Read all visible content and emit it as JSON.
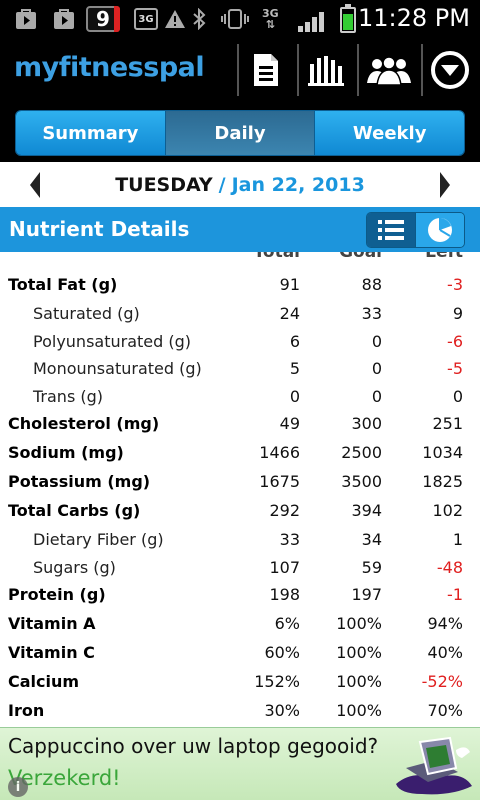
{
  "status_bar": {
    "notification_count": "9",
    "network_type": "3G",
    "time": "11:28 PM"
  },
  "app": {
    "logo": "myfitnesspal",
    "header_icons": [
      "document-icon",
      "bar-chart-icon",
      "friends-icon",
      "menu-dropdown-icon"
    ]
  },
  "tabs": [
    {
      "label": "Summary",
      "active": false
    },
    {
      "label": "Daily",
      "active": true
    },
    {
      "label": "Weekly",
      "active": false
    }
  ],
  "date_nav": {
    "day": "TUESDAY",
    "separator": "/",
    "date": "Jan 22, 2013"
  },
  "section": {
    "title": "Nutrient Details"
  },
  "columns": [
    "Total",
    "Goal",
    "Left"
  ],
  "nutrients": [
    {
      "name": "Total Fat (g)",
      "total": "91",
      "goal": "88",
      "left": "-3",
      "level": "main"
    },
    {
      "name": "Saturated (g)",
      "total": "24",
      "goal": "33",
      "left": "9",
      "level": "sub"
    },
    {
      "name": "Polyunsaturated (g)",
      "total": "6",
      "goal": "0",
      "left": "-6",
      "level": "sub"
    },
    {
      "name": "Monounsaturated (g)",
      "total": "5",
      "goal": "0",
      "left": "-5",
      "level": "sub"
    },
    {
      "name": "Trans (g)",
      "total": "0",
      "goal": "0",
      "left": "0",
      "level": "sub"
    },
    {
      "name": "Cholesterol (mg)",
      "total": "49",
      "goal": "300",
      "left": "251",
      "level": "main"
    },
    {
      "name": "Sodium (mg)",
      "total": "1466",
      "goal": "2500",
      "left": "1034",
      "level": "main"
    },
    {
      "name": "Potassium (mg)",
      "total": "1675",
      "goal": "3500",
      "left": "1825",
      "level": "main"
    },
    {
      "name": "Total Carbs (g)",
      "total": "292",
      "goal": "394",
      "left": "102",
      "level": "main"
    },
    {
      "name": "Dietary Fiber (g)",
      "total": "33",
      "goal": "34",
      "left": "1",
      "level": "sub"
    },
    {
      "name": "Sugars (g)",
      "total": "107",
      "goal": "59",
      "left": "-48",
      "level": "sub"
    },
    {
      "name": "Protein (g)",
      "total": "198",
      "goal": "197",
      "left": "-1",
      "level": "main"
    },
    {
      "name": "Vitamin A",
      "total": "6%",
      "goal": "100%",
      "left": "94%",
      "level": "main"
    },
    {
      "name": "Vitamin C",
      "total": "60%",
      "goal": "100%",
      "left": "40%",
      "level": "main"
    },
    {
      "name": "Calcium",
      "total": "152%",
      "goal": "100%",
      "left": "-52%",
      "level": "main"
    },
    {
      "name": "Iron",
      "total": "30%",
      "goal": "100%",
      "left": "70%",
      "level": "main"
    }
  ],
  "ad": {
    "line1": "Cappuccino over uw laptop gegooid?",
    "line2": "Verzekerd!",
    "info": "i"
  },
  "colors": {
    "accent": "#1d95dc",
    "negative": "#e02020",
    "logo": "#3da0e3"
  }
}
